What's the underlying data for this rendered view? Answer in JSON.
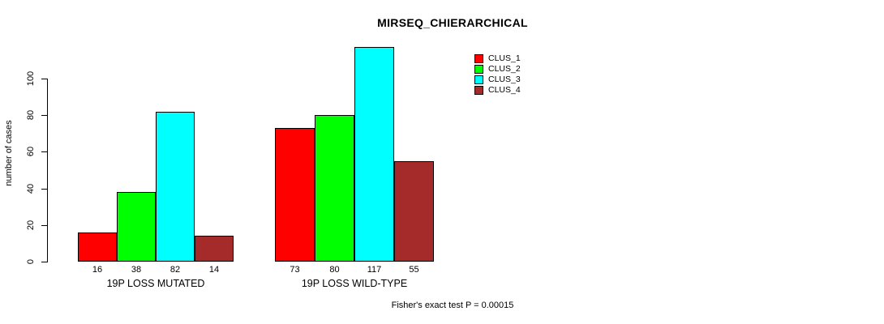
{
  "chart_data": {
    "type": "bar",
    "title": "MIRSEQ_CHIERARCHICAL",
    "ylabel": "number of cases",
    "xlabel": "",
    "categories": [
      "19P LOSS MUTATED",
      "19P LOSS WILD-TYPE"
    ],
    "series": [
      {
        "name": "CLUS_1",
        "color": "#ff0000",
        "values": [
          16,
          73
        ]
      },
      {
        "name": "CLUS_2",
        "color": "#00ff00",
        "values": [
          38,
          80
        ]
      },
      {
        "name": "CLUS_3",
        "color": "#00ffff",
        "values": [
          82,
          117
        ]
      },
      {
        "name": "CLUS_4",
        "color": "#a52a2a",
        "values": [
          14,
          55
        ]
      }
    ],
    "ylim": [
      0,
      117
    ],
    "yticks": [
      0,
      20,
      40,
      60,
      80,
      100
    ],
    "grid": false,
    "legend_position": "top-right",
    "legend_entries": [
      "CLUS_1",
      "CLUS_2",
      "CLUS_3",
      "CLUS_4"
    ],
    "value_labels_shown": true,
    "annotation": "Fisher's exact test P = 0.00015",
    "colors": {
      "background": "#ffffff",
      "text": "#000000",
      "bar_border": "#000000"
    }
  }
}
